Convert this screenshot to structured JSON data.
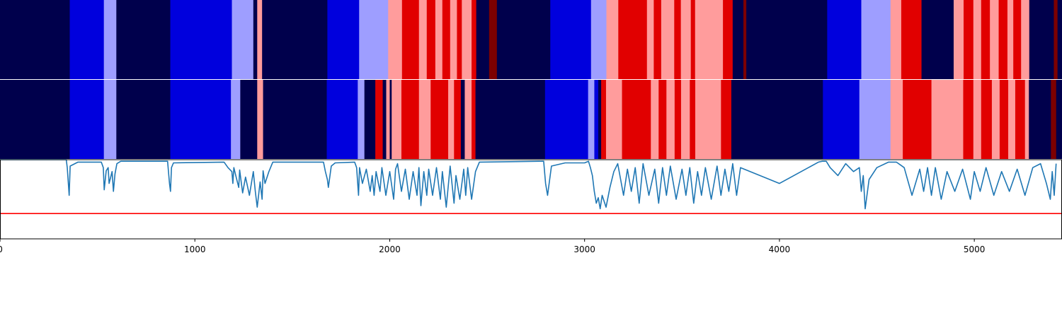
{
  "chart_data": {
    "type": "heatmap",
    "title": "",
    "xlabel": "",
    "ylabel": "",
    "xlim": [
      0,
      5450
    ],
    "x_ticks": [
      0,
      1000,
      2000,
      3000,
      4000,
      5000
    ],
    "x_tick_labels": [
      "0",
      "1000",
      "2000",
      "3000",
      "4000",
      "5000"
    ],
    "grid": false,
    "state_colors": {
      "A": "#00004c",
      "B": "#0000dd",
      "C": "#9e9eff",
      "D": "#ff9c9c",
      "E": "#e10000",
      "F": "#7d0000"
    },
    "rows": [
      {
        "segments": [
          [
            0,
            358,
            "A"
          ],
          [
            358,
            533,
            "B"
          ],
          [
            533,
            597,
            "C"
          ],
          [
            597,
            874,
            "A"
          ],
          [
            874,
            1190,
            "B"
          ],
          [
            1190,
            1300,
            "C"
          ],
          [
            1300,
            1320,
            "A"
          ],
          [
            1320,
            1345,
            "D"
          ],
          [
            1345,
            1680,
            "A"
          ],
          [
            1680,
            1843,
            "B"
          ],
          [
            1843,
            1992,
            "C"
          ],
          [
            1992,
            2063,
            "D"
          ],
          [
            2063,
            2150,
            "E"
          ],
          [
            2150,
            2190,
            "D"
          ],
          [
            2190,
            2234,
            "E"
          ],
          [
            2234,
            2270,
            "D"
          ],
          [
            2270,
            2310,
            "E"
          ],
          [
            2310,
            2345,
            "D"
          ],
          [
            2345,
            2370,
            "E"
          ],
          [
            2370,
            2420,
            "D"
          ],
          [
            2420,
            2444,
            "E"
          ],
          [
            2444,
            2510,
            "A"
          ],
          [
            2510,
            2550,
            "F"
          ],
          [
            2550,
            2824,
            "A"
          ],
          [
            2824,
            3033,
            "B"
          ],
          [
            3033,
            3112,
            "C"
          ],
          [
            3112,
            3173,
            "D"
          ],
          [
            3173,
            3320,
            "E"
          ],
          [
            3320,
            3355,
            "D"
          ],
          [
            3355,
            3393,
            "E"
          ],
          [
            3393,
            3460,
            "D"
          ],
          [
            3460,
            3494,
            "E"
          ],
          [
            3494,
            3545,
            "D"
          ],
          [
            3545,
            3567,
            "E"
          ],
          [
            3567,
            3710,
            "D"
          ],
          [
            3710,
            3760,
            "E"
          ],
          [
            3760,
            3815,
            "A"
          ],
          [
            3815,
            3830,
            "F"
          ],
          [
            3830,
            4245,
            "A"
          ],
          [
            4245,
            4420,
            "B"
          ],
          [
            4420,
            4570,
            "C"
          ],
          [
            4570,
            4625,
            "D"
          ],
          [
            4625,
            4729,
            "E"
          ],
          [
            4729,
            4894,
            "A"
          ],
          [
            4894,
            4945,
            "D"
          ],
          [
            4945,
            4995,
            "E"
          ],
          [
            4995,
            5035,
            "D"
          ],
          [
            5035,
            5080,
            "E"
          ],
          [
            5080,
            5125,
            "D"
          ],
          [
            5125,
            5170,
            "E"
          ],
          [
            5170,
            5200,
            "D"
          ],
          [
            5200,
            5240,
            "E"
          ],
          [
            5240,
            5282,
            "D"
          ],
          [
            5282,
            5408,
            "A"
          ],
          [
            5408,
            5427,
            "F"
          ],
          [
            5427,
            5450,
            "A"
          ]
        ]
      },
      {
        "segments": [
          [
            0,
            358,
            "A"
          ],
          [
            358,
            533,
            "B"
          ],
          [
            533,
            597,
            "C"
          ],
          [
            597,
            874,
            "A"
          ],
          [
            874,
            1185,
            "B"
          ],
          [
            1185,
            1233,
            "C"
          ],
          [
            1233,
            1320,
            "A"
          ],
          [
            1320,
            1350,
            "D"
          ],
          [
            1350,
            1677,
            "A"
          ],
          [
            1677,
            1836,
            "B"
          ],
          [
            1836,
            1870,
            "C"
          ],
          [
            1870,
            1926,
            "A"
          ],
          [
            1926,
            1964,
            "E"
          ],
          [
            1964,
            1982,
            "A"
          ],
          [
            1982,
            2000,
            "D"
          ],
          [
            2000,
            2010,
            "A"
          ],
          [
            2010,
            2060,
            "D"
          ],
          [
            2060,
            2150,
            "E"
          ],
          [
            2150,
            2210,
            "D"
          ],
          [
            2210,
            2300,
            "E"
          ],
          [
            2300,
            2330,
            "D"
          ],
          [
            2330,
            2365,
            "E"
          ],
          [
            2365,
            2385,
            "A"
          ],
          [
            2385,
            2420,
            "D"
          ],
          [
            2420,
            2440,
            "E"
          ],
          [
            2440,
            2797,
            "A"
          ],
          [
            2797,
            3018,
            "B"
          ],
          [
            3018,
            3050,
            "C"
          ],
          [
            3050,
            3070,
            "B"
          ],
          [
            3070,
            3085,
            "A"
          ],
          [
            3085,
            3110,
            "E"
          ],
          [
            3110,
            3192,
            "D"
          ],
          [
            3192,
            3340,
            "E"
          ],
          [
            3340,
            3380,
            "D"
          ],
          [
            3380,
            3420,
            "E"
          ],
          [
            3420,
            3462,
            "D"
          ],
          [
            3462,
            3495,
            "E"
          ],
          [
            3495,
            3540,
            "D"
          ],
          [
            3540,
            3568,
            "E"
          ],
          [
            3568,
            3700,
            "D"
          ],
          [
            3700,
            3753,
            "E"
          ],
          [
            3753,
            3830,
            "A"
          ],
          [
            3830,
            4223,
            "A"
          ],
          [
            4223,
            4410,
            "B"
          ],
          [
            4410,
            4453,
            "C"
          ],
          [
            4453,
            4570,
            "C"
          ],
          [
            4570,
            4633,
            "D"
          ],
          [
            4633,
            4720,
            "E"
          ],
          [
            4720,
            4780,
            "E"
          ],
          [
            4780,
            4910,
            "D"
          ],
          [
            4910,
            4943,
            "D"
          ],
          [
            4943,
            4995,
            "E"
          ],
          [
            4995,
            5035,
            "D"
          ],
          [
            5035,
            5090,
            "E"
          ],
          [
            5090,
            5130,
            "D"
          ],
          [
            5130,
            5174,
            "E"
          ],
          [
            5174,
            5210,
            "D"
          ],
          [
            5210,
            5260,
            "E"
          ],
          [
            5260,
            5280,
            "D"
          ],
          [
            5280,
            5393,
            "A"
          ],
          [
            5393,
            5420,
            "F"
          ],
          [
            5420,
            5450,
            "A"
          ]
        ]
      }
    ],
    "signal": {
      "color": "#1f77b4",
      "ylim": [
        0,
        1
      ],
      "x": [
        0,
        340,
        345,
        355,
        360,
        400,
        520,
        530,
        535,
        545,
        555,
        560,
        575,
        582,
        590,
        600,
        620,
        860,
        870,
        875,
        880,
        890,
        1150,
        1170,
        1190,
        1195,
        1200,
        1210,
        1225,
        1230,
        1245,
        1260,
        1280,
        1300,
        1310,
        1320,
        1335,
        1345,
        1350,
        1360,
        1380,
        1400,
        1660,
        1670,
        1680,
        1685,
        1700,
        1720,
        1820,
        1830,
        1840,
        1845,
        1860,
        1880,
        1900,
        1910,
        1920,
        1930,
        1950,
        1960,
        1980,
        2000,
        2020,
        2030,
        2040,
        2060,
        2080,
        2100,
        2120,
        2140,
        2150,
        2160,
        2175,
        2190,
        2200,
        2220,
        2240,
        2260,
        2270,
        2290,
        2310,
        2330,
        2340,
        2360,
        2380,
        2390,
        2400,
        2420,
        2440,
        2460,
        2780,
        2790,
        2800,
        2810,
        2830,
        2900,
        3000,
        3020,
        3030,
        3040,
        3050,
        3060,
        3070,
        3080,
        3090,
        3110,
        3130,
        3150,
        3170,
        3200,
        3220,
        3240,
        3260,
        3280,
        3300,
        3330,
        3360,
        3380,
        3400,
        3420,
        3440,
        3470,
        3500,
        3520,
        3540,
        3560,
        3580,
        3600,
        3620,
        3650,
        3680,
        3700,
        3720,
        3740,
        3760,
        3780,
        3800,
        4000,
        4200,
        4220,
        4240,
        4260,
        4300,
        4340,
        4380,
        4410,
        4420,
        4430,
        4440,
        4460,
        4500,
        4560,
        4600,
        4640,
        4680,
        4720,
        4740,
        4760,
        4780,
        4800,
        4830,
        4860,
        4900,
        4940,
        4980,
        5000,
        5030,
        5060,
        5100,
        5140,
        5180,
        5220,
        5260,
        5300,
        5340,
        5370,
        5390,
        5400,
        5410,
        5420,
        5450
      ],
      "y": [
        1.0,
        1.0,
        0.9,
        0.55,
        0.92,
        0.97,
        0.97,
        0.9,
        0.62,
        0.86,
        0.9,
        0.7,
        0.85,
        0.6,
        0.82,
        0.95,
        0.98,
        0.98,
        0.7,
        0.6,
        0.9,
        0.96,
        0.97,
        0.9,
        0.85,
        0.7,
        0.9,
        0.8,
        0.65,
        0.87,
        0.58,
        0.78,
        0.55,
        0.85,
        0.6,
        0.4,
        0.72,
        0.5,
        0.86,
        0.7,
        0.85,
        0.97,
        0.97,
        0.85,
        0.75,
        0.65,
        0.92,
        0.96,
        0.97,
        0.9,
        0.55,
        0.9,
        0.7,
        0.88,
        0.6,
        0.8,
        0.55,
        0.85,
        0.6,
        0.9,
        0.55,
        0.85,
        0.5,
        0.88,
        0.95,
        0.6,
        0.88,
        0.5,
        0.85,
        0.55,
        0.9,
        0.42,
        0.85,
        0.55,
        0.88,
        0.55,
        0.9,
        0.5,
        0.85,
        0.4,
        0.92,
        0.45,
        0.8,
        0.5,
        0.88,
        0.55,
        0.9,
        0.5,
        0.85,
        0.97,
        0.98,
        0.98,
        0.7,
        0.55,
        0.92,
        0.96,
        0.96,
        0.98,
        0.9,
        0.8,
        0.6,
        0.45,
        0.52,
        0.38,
        0.55,
        0.4,
        0.65,
        0.85,
        0.95,
        0.55,
        0.88,
        0.6,
        0.9,
        0.45,
        0.95,
        0.55,
        0.88,
        0.45,
        0.9,
        0.55,
        0.92,
        0.5,
        0.88,
        0.55,
        0.9,
        0.45,
        0.85,
        0.55,
        0.9,
        0.5,
        0.92,
        0.55,
        0.88,
        0.6,
        0.95,
        0.55,
        0.9,
        0.7,
        0.97,
        0.98,
        0.98,
        0.9,
        0.8,
        0.95,
        0.85,
        0.9,
        0.6,
        0.8,
        0.38,
        0.75,
        0.9,
        0.97,
        0.97,
        0.9,
        0.55,
        0.88,
        0.6,
        0.9,
        0.55,
        0.9,
        0.5,
        0.85,
        0.6,
        0.88,
        0.5,
        0.85,
        0.6,
        0.9,
        0.55,
        0.85,
        0.6,
        0.88,
        0.55,
        0.9,
        0.95,
        0.7,
        0.5,
        0.85,
        0.55,
        0.95
      ]
    },
    "threshold": {
      "color": "#ff0000",
      "y": 0.32
    }
  }
}
